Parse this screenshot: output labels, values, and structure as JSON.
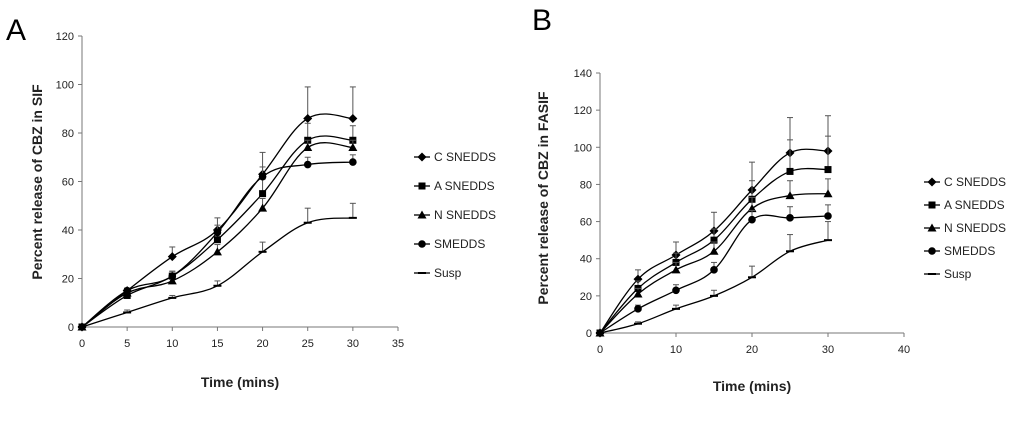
{
  "chart_data": [
    {
      "panel_label": "A",
      "type": "line",
      "xlabel": "Time (mins)",
      "ylabel": "Percent release of CBZ in SIF",
      "xlim": [
        0,
        35
      ],
      "ylim": [
        0,
        120
      ],
      "xticks": [
        0,
        5,
        10,
        15,
        20,
        25,
        30,
        35
      ],
      "yticks": [
        0,
        20,
        40,
        60,
        80,
        100,
        120
      ],
      "x": [
        0,
        5,
        10,
        15,
        20,
        25,
        30
      ],
      "grid": false,
      "legend_position": "right",
      "series": [
        {
          "name": "C SNEDDS",
          "marker": "diamond",
          "values": [
            0,
            15,
            29,
            40,
            63,
            86,
            86
          ],
          "errors": [
            0,
            1,
            4,
            5,
            9,
            13,
            13
          ]
        },
        {
          "name": "A SNEDDS",
          "marker": "square",
          "values": [
            0,
            13,
            21,
            36,
            55,
            77,
            77
          ],
          "errors": [
            0,
            1,
            2,
            4,
            6,
            7,
            6
          ]
        },
        {
          "name": "N SNEDDS",
          "marker": "triangle",
          "values": [
            0,
            14,
            19,
            31,
            49,
            74,
            74
          ],
          "errors": [
            0,
            1,
            2,
            3,
            4,
            3,
            3
          ]
        },
        {
          "name": "SMEDDS",
          "marker": "circle",
          "values": [
            0,
            15,
            21,
            39,
            62,
            67,
            68
          ],
          "errors": [
            0,
            1,
            2,
            3,
            4,
            3,
            3
          ]
        },
        {
          "name": "Susp",
          "marker": "dash",
          "values": [
            0,
            6,
            12,
            17,
            31,
            43,
            45
          ],
          "errors": [
            0,
            1,
            1,
            2,
            4,
            6,
            6
          ]
        }
      ]
    },
    {
      "panel_label": "B",
      "type": "line",
      "xlabel": "Time (mins)",
      "ylabel": "Percent release of CBZ in FASIF",
      "xlim": [
        0,
        40
      ],
      "ylim": [
        0,
        140
      ],
      "xticks": [
        0,
        10,
        20,
        30,
        40
      ],
      "yticks": [
        0,
        20,
        40,
        60,
        80,
        100,
        120,
        140
      ],
      "x": [
        0,
        5,
        10,
        15,
        20,
        25,
        30
      ],
      "grid": false,
      "legend_position": "right",
      "series": [
        {
          "name": "C SNEDDS",
          "marker": "diamond",
          "values": [
            0,
            29,
            42,
            55,
            77,
            97,
            98
          ],
          "errors": [
            0,
            5,
            7,
            10,
            15,
            19,
            19
          ]
        },
        {
          "name": "A SNEDDS",
          "marker": "square",
          "values": [
            0,
            24,
            38,
            50,
            72,
            87,
            88
          ],
          "errors": [
            0,
            4,
            5,
            6,
            10,
            17,
            18
          ]
        },
        {
          "name": "N SNEDDS",
          "marker": "triangle",
          "values": [
            0,
            21,
            34,
            44,
            67,
            74,
            75
          ],
          "errors": [
            0,
            3,
            4,
            5,
            6,
            8,
            8
          ]
        },
        {
          "name": "SMEDDS",
          "marker": "circle",
          "values": [
            0,
            13,
            23,
            34,
            61,
            62,
            63
          ],
          "errors": [
            0,
            2,
            3,
            4,
            5,
            6,
            6
          ]
        },
        {
          "name": "Susp",
          "marker": "dash",
          "values": [
            0,
            5,
            13,
            20,
            30,
            44,
            50
          ],
          "errors": [
            0,
            1,
            2,
            3,
            6,
            9,
            10
          ]
        }
      ]
    }
  ]
}
